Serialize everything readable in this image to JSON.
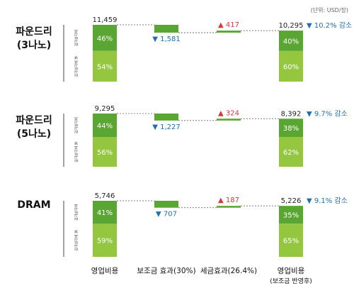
{
  "unit_note": "(단위: USD/장)",
  "colors": {
    "dark": "#5aa632",
    "light": "#94c73f",
    "down": "#1f6fb0",
    "up": "#e0343b",
    "dash": "#555555",
    "axis": "#444444"
  },
  "x_labels": [
    {
      "line1": "영업비용",
      "line2": ""
    },
    {
      "line1": "보조금 효과(30%)",
      "line2": ""
    },
    {
      "line1": "세금효과(26.4%)",
      "line2": ""
    },
    {
      "line1": "영업비용",
      "line2": "(보조금 반영후)"
    }
  ],
  "chart_data": [
    {
      "type": "bar",
      "row_label": [
        "파운드리",
        "(3나노)"
      ],
      "small_labels": [
        "감가상각비",
        "감가상각비 外"
      ],
      "start": {
        "total": 11459,
        "total_text": "11,459",
        "top_pct": "46%",
        "bottom_pct": "54%"
      },
      "subsidy": {
        "value": -1581,
        "text": "▼ 1,581"
      },
      "tax": {
        "value": 417,
        "text": "▲ 417"
      },
      "end": {
        "total": 10295,
        "total_text": "10,295",
        "top_pct": "40%",
        "bottom_pct": "60%",
        "reduction": "▼ 10.2% 감소"
      }
    },
    {
      "type": "bar",
      "row_label": [
        "파운드리",
        "(5나노)"
      ],
      "small_labels": [
        "감가상각비",
        "감가상각비 外"
      ],
      "start": {
        "total": 9295,
        "total_text": "9,295",
        "top_pct": "44%",
        "bottom_pct": "56%"
      },
      "subsidy": {
        "value": -1227,
        "text": "▼ 1,227"
      },
      "tax": {
        "value": 324,
        "text": "▲ 324"
      },
      "end": {
        "total": 8392,
        "total_text": "8,392",
        "top_pct": "38%",
        "bottom_pct": "62%",
        "reduction": "▼ 9.7% 감소"
      }
    },
    {
      "type": "bar",
      "row_label": [
        "DRAM"
      ],
      "small_labels": [
        "감가상각비",
        "감가상각비 外"
      ],
      "start": {
        "total": 5746,
        "total_text": "5,746",
        "top_pct": "41%",
        "bottom_pct": "59%"
      },
      "subsidy": {
        "value": -707,
        "text": "▼ 707"
      },
      "tax": {
        "value": 187,
        "text": "▲ 187"
      },
      "end": {
        "total": 5226,
        "total_text": "5,226",
        "top_pct": "35%",
        "bottom_pct": "65%",
        "reduction": "▼ 9.1% 감소"
      }
    }
  ]
}
